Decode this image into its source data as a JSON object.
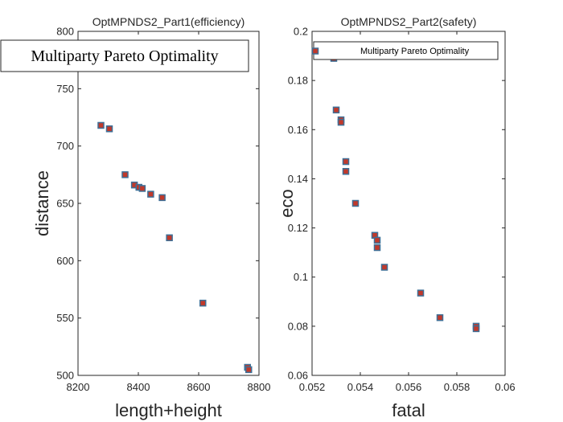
{
  "chart_data": [
    {
      "type": "scatter",
      "title": "OptMPNDS2_Part1(efficiency)",
      "xlabel": "length+height",
      "ylabel": "distance",
      "xlim": [
        8200,
        8800
      ],
      "ylim": [
        500,
        800
      ],
      "xticks": [
        8200,
        8400,
        8600,
        8800
      ],
      "xtick_labels": [
        "8200",
        "8400",
        "8600",
        "8800"
      ],
      "yticks": [
        500,
        550,
        600,
        650,
        700,
        750,
        800
      ],
      "ytick_labels": [
        "500",
        "550",
        "600",
        "650",
        "700",
        "750",
        "800"
      ],
      "legend": "Multiparty Pareto Optimality",
      "legend_location": "top-left",
      "marker_face": "#c0392b",
      "marker_edge": "#3e6f96",
      "series": [
        {
          "name": "Multiparty Pareto Optimality",
          "x": [
            8276,
            8304,
            8356,
            8387,
            8402,
            8413,
            8441,
            8479,
            8503,
            8614,
            8762,
            8766
          ],
          "y": [
            718,
            715,
            675,
            666,
            664,
            663,
            658,
            655,
            620,
            563,
            507,
            505
          ]
        }
      ]
    },
    {
      "type": "scatter",
      "title": "OptMPNDS2_Part2(safety)",
      "xlabel": "fatal",
      "ylabel": "eco",
      "xlim": [
        0.052,
        0.06
      ],
      "ylim": [
        0.06,
        0.2
      ],
      "xticks": [
        0.052,
        0.054,
        0.056,
        0.058,
        0.06
      ],
      "xtick_labels": [
        "0.052",
        "0.054",
        "0.056",
        "0.058",
        "0.06"
      ],
      "yticks": [
        0.06,
        0.08,
        0.1,
        0.12,
        0.14,
        0.16,
        0.18,
        0.2
      ],
      "ytick_labels": [
        "0.06",
        "0.08",
        "0.1",
        "0.12",
        "0.14",
        "0.16",
        "0.18",
        "0.2"
      ],
      "legend": "Multiparty Pareto Optimality",
      "legend_location": "top-right",
      "marker_face": "#c0392b",
      "marker_edge": "#3e6f96",
      "series": [
        {
          "name": "Multiparty Pareto Optimality",
          "x": [
            0.0529,
            0.053,
            0.0532,
            0.0532,
            0.0534,
            0.0534,
            0.0538,
            0.0546,
            0.0547,
            0.0547,
            0.055,
            0.0565,
            0.0573,
            0.0588,
            0.0588
          ],
          "y": [
            0.189,
            0.168,
            0.164,
            0.163,
            0.147,
            0.143,
            0.13,
            0.117,
            0.115,
            0.112,
            0.104,
            0.0935,
            0.0835,
            0.08,
            0.079
          ]
        }
      ]
    }
  ]
}
